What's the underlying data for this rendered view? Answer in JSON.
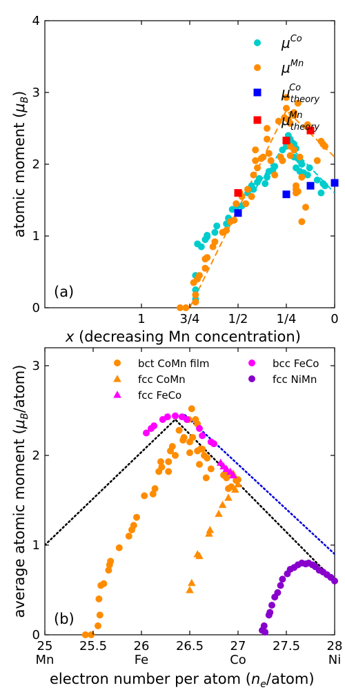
{
  "chart_data": [
    {
      "type": "scatter",
      "panel_label": "(a)",
      "xlabel": "x (decreasing Mn concentration)",
      "ylabel": "atomic moment (μB)",
      "xlim": [
        0,
        1.5
      ],
      "ylim": [
        0,
        4
      ],
      "x_reversed": true,
      "xticks": [
        {
          "value": 1.0,
          "label": "1"
        },
        {
          "value": 0.75,
          "label": "3/4"
        },
        {
          "value": 0.5,
          "label": "1/2"
        },
        {
          "value": 0.25,
          "label": "1/4"
        },
        {
          "value": 0.0,
          "label": "0"
        }
      ],
      "yticks": [
        0,
        1,
        2,
        3,
        4
      ],
      "legend_position": "top-right",
      "series": [
        {
          "name": "μ^Co",
          "legend_main": "μ",
          "legend_sup": "Co",
          "legend_sub": "",
          "marker": "circle",
          "color": "#00cccc",
          "points": [
            [
              0.72,
              0.12
            ],
            [
              0.72,
              0.25
            ],
            [
              0.72,
              0.45
            ],
            [
              0.71,
              0.89
            ],
            [
              0.69,
              0.85
            ],
            [
              0.67,
              0.95
            ],
            [
              0.66,
              0.99
            ],
            [
              0.66,
              1.01
            ],
            [
              0.62,
              1.05
            ],
            [
              0.61,
              1.14
            ],
            [
              0.56,
              1.17
            ],
            [
              0.55,
              1.25
            ],
            [
              0.53,
              1.37
            ],
            [
              0.51,
              1.39
            ],
            [
              0.48,
              1.42
            ],
            [
              0.45,
              1.6
            ],
            [
              0.44,
              1.66
            ],
            [
              0.43,
              1.7
            ],
            [
              0.42,
              1.65
            ],
            [
              0.4,
              1.75
            ],
            [
              0.39,
              1.8
            ],
            [
              0.36,
              1.73
            ],
            [
              0.35,
              1.82
            ],
            [
              0.34,
              1.9
            ],
            [
              0.32,
              1.92
            ],
            [
              0.31,
              1.97
            ],
            [
              0.27,
              2.05
            ],
            [
              0.27,
              2.2
            ],
            [
              0.25,
              2.25
            ],
            [
              0.24,
              2.4
            ],
            [
              0.23,
              2.35
            ],
            [
              0.22,
              2.3
            ],
            [
              0.21,
              2.28
            ],
            [
              0.21,
              2.1
            ],
            [
              0.2,
              2.22
            ],
            [
              0.2,
              1.95
            ],
            [
              0.19,
              2.08
            ],
            [
              0.18,
              2.05
            ],
            [
              0.18,
              1.9
            ],
            [
              0.17,
              2.0
            ],
            [
              0.16,
              1.88
            ],
            [
              0.14,
              1.85
            ],
            [
              0.13,
              1.95
            ],
            [
              0.09,
              1.78
            ],
            [
              0.07,
              1.6
            ],
            [
              0.06,
              1.73
            ],
            [
              0.05,
              1.7
            ]
          ]
        },
        {
          "name": "μ^Mn",
          "legend_main": "μ",
          "legend_sup": "Mn",
          "legend_sub": "",
          "marker": "circle",
          "color": "#ff8c00",
          "points": [
            [
              0.8,
              0.0
            ],
            [
              0.77,
              0.0
            ],
            [
              0.72,
              0.08
            ],
            [
              0.72,
              0.18
            ],
            [
              0.73,
              0.35
            ],
            [
              0.71,
              0.4
            ],
            [
              0.7,
              0.45
            ],
            [
              0.67,
              0.55
            ],
            [
              0.67,
              0.68
            ],
            [
              0.66,
              0.7
            ],
            [
              0.63,
              0.85
            ],
            [
              0.62,
              0.92
            ],
            [
              0.58,
              1.05
            ],
            [
              0.56,
              1.08
            ],
            [
              0.54,
              1.2
            ],
            [
              0.52,
              1.22
            ],
            [
              0.51,
              1.45
            ],
            [
              0.49,
              1.6
            ],
            [
              0.48,
              1.55
            ],
            [
              0.46,
              1.45
            ],
            [
              0.45,
              1.65
            ],
            [
              0.43,
              1.55
            ],
            [
              0.42,
              1.85
            ],
            [
              0.41,
              2.05
            ],
            [
              0.41,
              2.2
            ],
            [
              0.4,
              1.95
            ],
            [
              0.38,
              2.08
            ],
            [
              0.37,
              2.1
            ],
            [
              0.35,
              2.35
            ],
            [
              0.35,
              2.5
            ],
            [
              0.34,
              2.15
            ],
            [
              0.33,
              2.05
            ],
            [
              0.31,
              1.85
            ],
            [
              0.29,
              2.6
            ],
            [
              0.28,
              2.1
            ],
            [
              0.27,
              2.05
            ],
            [
              0.26,
              2.65
            ],
            [
              0.25,
              2.78
            ],
            [
              0.25,
              2.93
            ],
            [
              0.24,
              2.62
            ],
            [
              0.23,
              2.12
            ],
            [
              0.23,
              2.25
            ],
            [
              0.23,
              2.57
            ],
            [
              0.22,
              2.7
            ],
            [
              0.21,
              2.72
            ],
            [
              0.21,
              2.68
            ],
            [
              0.21,
              2.2
            ],
            [
              0.2,
              1.6
            ],
            [
              0.2,
              1.65
            ],
            [
              0.2,
              1.7
            ],
            [
              0.19,
              1.62
            ],
            [
              0.19,
              2.85
            ],
            [
              0.18,
              2.1
            ],
            [
              0.17,
              1.82
            ],
            [
              0.17,
              1.2
            ],
            [
              0.15,
              1.4
            ],
            [
              0.14,
              2.55
            ],
            [
              0.09,
              2.05
            ],
            [
              0.07,
              2.32
            ],
            [
              0.06,
              2.28
            ],
            [
              0.05,
              2.25
            ]
          ]
        },
        {
          "name": "μ^Co_theory",
          "legend_main": "μ",
          "legend_sup": "Co",
          "legend_sub": "theory",
          "marker": "square",
          "color": "#0000ff",
          "points": [
            [
              0.5,
              1.32
            ],
            [
              0.25,
              1.58
            ],
            [
              0.125,
              1.7
            ],
            [
              0.0,
              1.74
            ]
          ]
        },
        {
          "name": "μ^Mn_theory",
          "legend_main": "μ",
          "legend_sup": "Mn",
          "legend_sub": "theory",
          "marker": "square",
          "color": "#ff0000",
          "points": [
            [
              0.5,
              1.6
            ],
            [
              0.25,
              2.33
            ],
            [
              0.125,
              2.47
            ]
          ]
        }
      ],
      "fit_lines": [
        {
          "color": "#ff8c00",
          "style": "dashed",
          "points": [
            [
              0.75,
              0.0
            ],
            [
              0.25,
              2.75
            ],
            [
              0.0,
              2.1
            ]
          ]
        },
        {
          "color": "#00cccc",
          "style": "dashed",
          "points": [
            [
              0.5,
              1.3
            ],
            [
              0.25,
              2.3
            ],
            [
              0.0,
              1.6
            ]
          ]
        }
      ]
    },
    {
      "type": "scatter",
      "panel_label": "(b)",
      "xlabel": "electron number per atom (ne/atom)",
      "ylabel": "average atomic moment (μB/atom)",
      "xlim": [
        25,
        28
      ],
      "ylim": [
        0,
        3.2
      ],
      "xticks": [
        {
          "value": 25,
          "label": "25",
          "element": "Mn"
        },
        {
          "value": 25.5,
          "label": "25.5",
          "element": ""
        },
        {
          "value": 26,
          "label": "26",
          "element": "Fe"
        },
        {
          "value": 26.5,
          "label": "26.5",
          "element": ""
        },
        {
          "value": 27,
          "label": "27",
          "element": "Co"
        },
        {
          "value": 27.5,
          "label": "27.5",
          "element": ""
        },
        {
          "value": 28,
          "label": "28",
          "element": "Ni"
        }
      ],
      "yticks": [
        0,
        1,
        2,
        3
      ],
      "legend_position": "top",
      "series": [
        {
          "name": "bct CoMn film",
          "marker": "circle",
          "color": "#ff8c00",
          "points": [
            [
              25.42,
              0.0
            ],
            [
              25.48,
              0.0
            ],
            [
              25.55,
              0.1
            ],
            [
              25.56,
              0.4
            ],
            [
              25.57,
              0.22
            ],
            [
              25.58,
              0.55
            ],
            [
              25.61,
              0.57
            ],
            [
              25.66,
              0.72
            ],
            [
              25.67,
              0.78
            ],
            [
              25.68,
              0.82
            ],
            [
              25.77,
              0.97
            ],
            [
              25.87,
              1.1
            ],
            [
              25.9,
              1.17
            ],
            [
              25.92,
              1.22
            ],
            [
              25.95,
              1.31
            ],
            [
              26.03,
              1.55
            ],
            [
              26.12,
              1.57
            ],
            [
              26.14,
              1.63
            ],
            [
              26.18,
              1.82
            ],
            [
              26.2,
              1.93
            ],
            [
              26.21,
              1.87
            ],
            [
              26.28,
              1.82
            ],
            [
              26.28,
              1.93
            ],
            [
              26.3,
              2.05
            ],
            [
              26.32,
              2.1
            ],
            [
              26.35,
              2.0
            ],
            [
              26.39,
              2.28
            ],
            [
              26.43,
              2.17
            ],
            [
              26.44,
              2.2
            ],
            [
              26.49,
              2.4
            ],
            [
              26.5,
              2.15
            ],
            [
              26.5,
              2.03
            ],
            [
              26.52,
              2.52
            ],
            [
              26.53,
              2.2
            ],
            [
              26.56,
              2.4
            ],
            [
              26.58,
              2.35
            ],
            [
              26.58,
              2.05
            ],
            [
              26.6,
              1.9
            ],
            [
              26.61,
              2.07
            ],
            [
              26.63,
              2.07
            ],
            [
              26.65,
              2.0
            ],
            [
              26.67,
              1.75
            ],
            [
              26.68,
              1.97
            ],
            [
              26.72,
              1.85
            ],
            [
              26.75,
              2.13
            ],
            [
              26.85,
              1.78
            ],
            [
              26.88,
              1.75
            ],
            [
              26.9,
              1.8
            ],
            [
              26.9,
              1.63
            ],
            [
              26.93,
              1.65
            ],
            [
              26.98,
              1.72
            ],
            [
              27.0,
              1.73
            ]
          ]
        },
        {
          "name": "fcc CoMn",
          "marker": "triangle",
          "color": "#ff8c00",
          "points": [
            [
              26.5,
              0.5
            ],
            [
              26.52,
              0.58
            ],
            [
              26.58,
              0.9
            ],
            [
              26.6,
              0.88
            ],
            [
              26.7,
              1.13
            ],
            [
              26.71,
              1.17
            ],
            [
              26.8,
              1.35
            ],
            [
              26.84,
              1.45
            ],
            [
              26.9,
              1.53
            ],
            [
              26.97,
              1.62
            ],
            [
              27.0,
              1.68
            ],
            [
              26.88,
              1.8
            ],
            [
              26.95,
              1.8
            ]
          ]
        },
        {
          "name": "fcc FeCo",
          "marker": "triangle",
          "color": "#ff00ff",
          "points": [
            [
              26.82,
              1.92
            ],
            [
              26.85,
              1.88
            ],
            [
              26.88,
              1.85
            ],
            [
              26.92,
              1.82
            ],
            [
              26.95,
              1.78
            ]
          ]
        },
        {
          "name": "bcc FeCo",
          "marker": "circle",
          "color": "#ff00ff",
          "points": [
            [
              26.05,
              2.25
            ],
            [
              26.1,
              2.3
            ],
            [
              26.13,
              2.33
            ],
            [
              26.22,
              2.4
            ],
            [
              26.27,
              2.43
            ],
            [
              26.35,
              2.44
            ],
            [
              26.42,
              2.43
            ],
            [
              26.47,
              2.4
            ],
            [
              26.6,
              2.3
            ],
            [
              26.63,
              2.22
            ],
            [
              26.72,
              2.15
            ],
            [
              26.75,
              2.13
            ]
          ]
        },
        {
          "name": "fcc NiMn",
          "marker": "circle",
          "color": "#8800cc",
          "points": [
            [
              27.25,
              0.05
            ],
            [
              27.27,
              0.1
            ],
            [
              27.28,
              0.03
            ],
            [
              27.32,
              0.22
            ],
            [
              27.33,
              0.25
            ],
            [
              27.35,
              0.33
            ],
            [
              27.38,
              0.42
            ],
            [
              27.41,
              0.47
            ],
            [
              27.44,
              0.55
            ],
            [
              27.46,
              0.62
            ],
            [
              27.51,
              0.68
            ],
            [
              27.54,
              0.73
            ],
            [
              27.58,
              0.75
            ],
            [
              27.62,
              0.78
            ],
            [
              27.66,
              0.8
            ],
            [
              27.7,
              0.79
            ],
            [
              27.73,
              0.8
            ],
            [
              27.77,
              0.78
            ],
            [
              27.8,
              0.76
            ],
            [
              27.84,
              0.72
            ],
            [
              27.88,
              0.7
            ],
            [
              27.92,
              0.67
            ],
            [
              27.96,
              0.64
            ],
            [
              28.0,
              0.6
            ]
          ]
        }
      ],
      "guide_lines": [
        {
          "color": "#000000",
          "style": "dotted",
          "points": [
            [
              25.0,
              1.0
            ],
            [
              26.35,
              2.4
            ],
            [
              28.0,
              0.6
            ]
          ]
        },
        {
          "color": "#0000dd",
          "style": "dotted",
          "points": [
            [
              26.45,
              2.45
            ],
            [
              28.0,
              0.9
            ]
          ]
        }
      ]
    }
  ]
}
